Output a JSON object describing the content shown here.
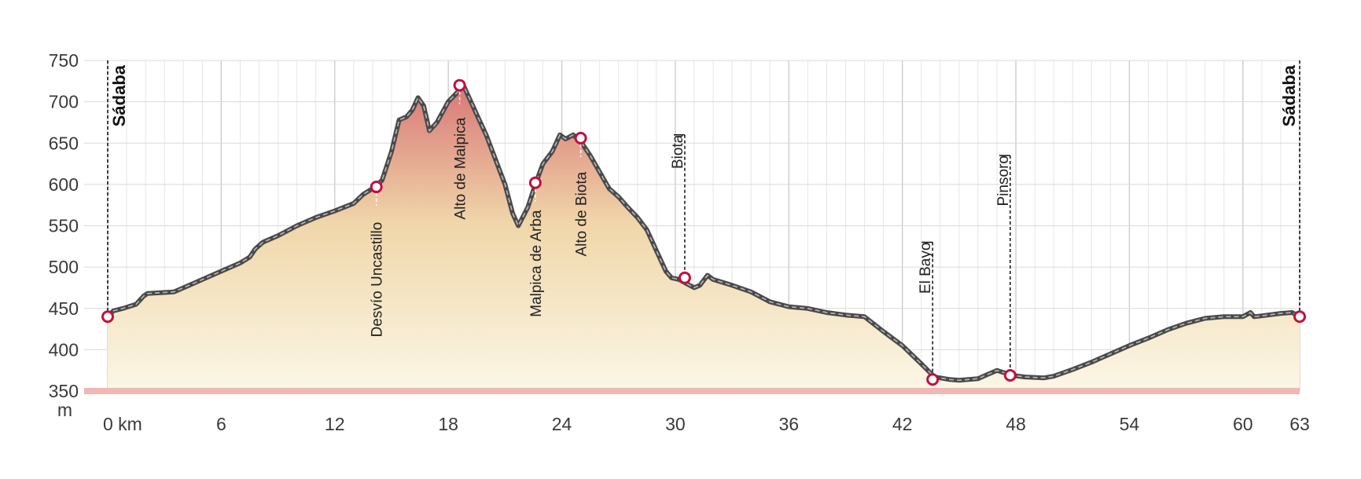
{
  "chart_data": {
    "type": "area",
    "title": "",
    "xlabel": "",
    "ylabel": "m",
    "x_unit": "km",
    "xlim": [
      0,
      63
    ],
    "ylim": [
      350,
      750
    ],
    "x_ticks": [
      0,
      6,
      12,
      18,
      24,
      30,
      36,
      42,
      48,
      54,
      60,
      63
    ],
    "x_tick_labels": [
      "0 km",
      "6",
      "12",
      "18",
      "24",
      "30",
      "36",
      "42",
      "48",
      "54",
      "60",
      "63"
    ],
    "y_ticks": [
      350,
      400,
      450,
      500,
      550,
      600,
      650,
      700,
      750
    ],
    "y_tick_labels": [
      "350",
      "400",
      "450",
      "500",
      "550",
      "600",
      "650",
      "700",
      "750"
    ],
    "grid": true,
    "colors": {
      "area_top": "#d87676",
      "area_bottom": "#fbf7e6",
      "line": "#4a4a4a",
      "marker": "#c2103f",
      "baseline": "#f0b7b5",
      "grid": "#d9d9d9"
    },
    "series": [
      {
        "values_x": [
          0,
          0.3,
          0.8,
          1.5,
          1.9,
          2.1,
          3.5,
          4.5,
          6,
          7,
          7.5,
          7.8,
          8.2,
          9,
          10,
          11,
          12,
          13,
          13.5,
          14,
          14.5,
          15,
          15.4,
          15.8,
          16.1,
          16.4,
          16.7,
          17,
          17.4,
          18,
          18.5,
          18.8,
          19.2,
          19.6,
          20,
          20.5,
          21,
          21.4,
          21.7,
          22.2,
          22.6,
          23,
          23.5,
          23.9,
          24.2,
          24.6,
          25,
          25.5,
          26,
          26.5,
          27,
          27.5,
          28,
          28.5,
          29,
          29.5,
          29.8,
          30.2,
          30.6,
          31,
          31.3,
          31.7,
          32,
          33,
          34,
          35,
          36,
          37,
          38,
          39,
          40,
          41,
          42,
          43,
          43.7,
          44.5,
          45,
          46,
          46.5,
          47,
          47.4,
          47.8,
          48.5,
          49.5,
          50,
          51,
          52,
          53,
          54,
          55,
          56,
          57,
          58,
          59,
          60,
          60.4,
          60.6,
          61,
          62,
          62.6,
          63
        ],
        "values_y": [
          440,
          447,
          450,
          455,
          465,
          468,
          470,
          480,
          495,
          505,
          512,
          522,
          530,
          538,
          550,
          560,
          568,
          577,
          588,
          595,
          605,
          640,
          678,
          682,
          690,
          705,
          695,
          665,
          675,
          700,
          712,
          720,
          700,
          680,
          660,
          630,
          600,
          565,
          550,
          572,
          600,
          625,
          640,
          660,
          655,
          660,
          652,
          635,
          615,
          595,
          585,
          572,
          560,
          545,
          520,
          495,
          487,
          485,
          480,
          475,
          478,
          490,
          485,
          478,
          470,
          458,
          452,
          450,
          445,
          442,
          440,
          422,
          405,
          383,
          367,
          364,
          363,
          365,
          370,
          375,
          372,
          369,
          367,
          366,
          368,
          376,
          385,
          395,
          405,
          414,
          424,
          432,
          438,
          440,
          440,
          445,
          440,
          441,
          444,
          445,
          440
        ]
      }
    ],
    "waypoints": [
      {
        "label": "Sádaba",
        "km": 0,
        "ele": 440,
        "marker": true,
        "label_style": "bold"
      },
      {
        "label": "Desvío Uncastillo",
        "km": 14.2,
        "ele": 597,
        "marker": true
      },
      {
        "label": "Alto de Malpica",
        "km": 18.6,
        "ele": 720,
        "marker": true
      },
      {
        "label": "Malpica de Arba",
        "km": 22.6,
        "ele": 602,
        "marker": true
      },
      {
        "label": "Alto de Biota",
        "km": 25,
        "ele": 656,
        "marker": true
      },
      {
        "label": "Biota",
        "km": 30.5,
        "ele": 487,
        "marker": true
      },
      {
        "label": "El Bayo",
        "km": 43.6,
        "ele": 364,
        "marker": true
      },
      {
        "label": "Pinsoro",
        "km": 47.7,
        "ele": 369,
        "marker": true
      },
      {
        "label": "Sádaba",
        "km": 63,
        "ele": 440,
        "marker": true,
        "label_style": "bold"
      }
    ]
  }
}
